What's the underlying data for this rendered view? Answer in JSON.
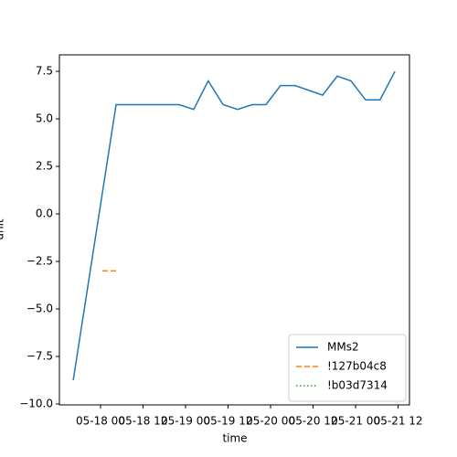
{
  "chart_data": {
    "type": "line",
    "xlabel": "time",
    "ylabel": "unit",
    "xlim": [
      -11.6,
      87.2
    ],
    "xticks": [
      {
        "value": 0,
        "label": "05-18 00"
      },
      {
        "value": 12,
        "label": "05-18 12"
      },
      {
        "value": 24,
        "label": "05-19 00"
      },
      {
        "value": 36,
        "label": "05-19 12"
      },
      {
        "value": 48,
        "label": "05-20 00"
      },
      {
        "value": 60,
        "label": "05-20 12"
      },
      {
        "value": 72,
        "label": "05-21 00"
      },
      {
        "value": 84,
        "label": "05-21 12"
      }
    ],
    "ylim": [
      -10.05,
      8.37
    ],
    "yticks": [
      {
        "value": -10,
        "label": "−10.0"
      },
      {
        "value": -7.5,
        "label": "−7.5"
      },
      {
        "value": -5,
        "label": "−5.0"
      },
      {
        "value": -2.5,
        "label": "−2.5"
      },
      {
        "value": 0,
        "label": "0.0"
      },
      {
        "value": 2.5,
        "label": "2.5"
      },
      {
        "value": 5,
        "label": "5.0"
      },
      {
        "value": 7.5,
        "label": "7.5"
      }
    ],
    "legend": "lower right",
    "series": [
      {
        "name": "MMs2",
        "color": "#1f77b4",
        "dash": "solid",
        "x": [
          -7.7,
          4.4,
          22.2,
          26.3,
          30.4,
          34.6,
          38.7,
          42.8,
          46.7,
          50.8,
          54.9,
          58.8,
          62.7,
          66.8,
          70.7,
          74.8,
          78.9,
          83.1
        ],
        "values": [
          -8.75,
          5.75,
          5.75,
          5.5,
          7.0,
          5.75,
          5.5,
          5.75,
          5.75,
          6.75,
          6.75,
          6.5,
          6.25,
          7.25,
          7.0,
          6.0,
          6.0,
          7.5
        ]
      },
      {
        "name": "!127b04c8",
        "color": "#ff7f0e",
        "dash": "dashed",
        "x": [
          0.5,
          4.4
        ],
        "values": [
          -3,
          -3
        ]
      },
      {
        "name": "!b03d7314",
        "color": "#2ca02c",
        "dash": "dotted",
        "x": [],
        "values": []
      }
    ]
  }
}
